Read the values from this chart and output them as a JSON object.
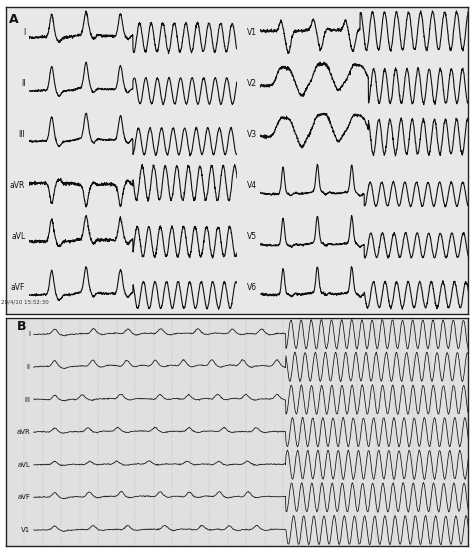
{
  "title_A": "A",
  "title_B": "B",
  "timestamp": "28/4/10 15:52:30",
  "bg_color_A": "#e8e8e8",
  "bg_color_B": "#e0e0e0",
  "line_color": "#111111",
  "grid_color": "#aaaaaa",
  "border_color": "#222222",
  "label_color": "#111111",
  "leads_A_left": [
    "I",
    "II",
    "III",
    "aVR",
    "aVL",
    "aVF"
  ],
  "leads_A_right": [
    "V1",
    "V2",
    "V3",
    "V4",
    "V5",
    "V6"
  ],
  "leads_B": [
    "I",
    "II",
    "III",
    "aVR",
    "aVL",
    "aVF",
    "V1"
  ],
  "figsize": [
    4.74,
    5.53
  ],
  "dpi": 100
}
